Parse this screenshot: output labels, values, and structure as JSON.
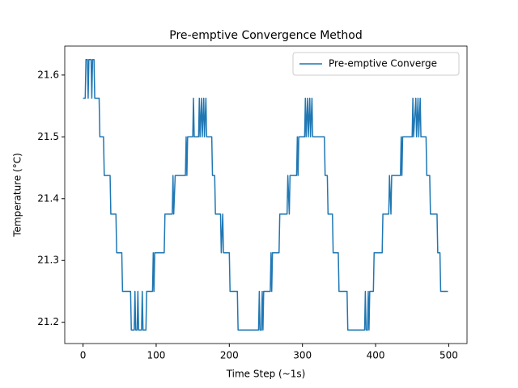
{
  "chart_data": {
    "type": "line",
    "title": "Pre-emptive Convergence Method",
    "xlabel": "Time Step (~1s)",
    "ylabel": "Temperature (°C)",
    "x": [
      0,
      3,
      4,
      6,
      7,
      8,
      11,
      12,
      13,
      15,
      16,
      22,
      23,
      28,
      29,
      37,
      38,
      45,
      46,
      53,
      54,
      65,
      66,
      70,
      71,
      72,
      74,
      75,
      76,
      80,
      81,
      82,
      86,
      87,
      95,
      96,
      97,
      98,
      111,
      112,
      122,
      123,
      124,
      126,
      140,
      141,
      142,
      143,
      150,
      151,
      152,
      158,
      159,
      160,
      162,
      163,
      165,
      166,
      168,
      169,
      176,
      177,
      180,
      181,
      188,
      189,
      191,
      192,
      200,
      201,
      211,
      212,
      240,
      241,
      242,
      244,
      245,
      246,
      247,
      256,
      257,
      258,
      259,
      268,
      269,
      279,
      280,
      282,
      283,
      292,
      293,
      294,
      295,
      303,
      304,
      305,
      307,
      308,
      310,
      311,
      313,
      314,
      330,
      331,
      334,
      335,
      341,
      342,
      349,
      350,
      361,
      362,
      385,
      386,
      387,
      389,
      390,
      391,
      392,
      397,
      398,
      409,
      410,
      418,
      419,
      421,
      422,
      434,
      435,
      436,
      437,
      450,
      451,
      452,
      455,
      456,
      458,
      459,
      461,
      462,
      469,
      470,
      474,
      475,
      484,
      485,
      488,
      489,
      499
    ],
    "series": [
      {
        "name": "Pre-emptive Converge",
        "color": "#1f77b4",
        "values": [
          21.5625,
          21.5625,
          21.625,
          21.625,
          21.5625,
          21.625,
          21.625,
          21.5625,
          21.625,
          21.625,
          21.5625,
          21.5625,
          21.5,
          21.5,
          21.4375,
          21.4375,
          21.375,
          21.375,
          21.3125,
          21.3125,
          21.25,
          21.25,
          21.1875,
          21.1875,
          21.25,
          21.1875,
          21.1875,
          21.25,
          21.1875,
          21.1875,
          21.25,
          21.1875,
          21.1875,
          21.25,
          21.25,
          21.3125,
          21.25,
          21.3125,
          21.3125,
          21.375,
          21.375,
          21.4375,
          21.375,
          21.4375,
          21.4375,
          21.5,
          21.4375,
          21.5,
          21.5,
          21.5625,
          21.5,
          21.5,
          21.5625,
          21.5,
          21.5625,
          21.5,
          21.5625,
          21.5,
          21.5625,
          21.5,
          21.5,
          21.4375,
          21.4375,
          21.375,
          21.375,
          21.3125,
          21.375,
          21.3125,
          21.3125,
          21.25,
          21.25,
          21.1875,
          21.1875,
          21.25,
          21.1875,
          21.1875,
          21.25,
          21.1875,
          21.25,
          21.25,
          21.3125,
          21.25,
          21.3125,
          21.3125,
          21.375,
          21.375,
          21.4375,
          21.375,
          21.4375,
          21.4375,
          21.5,
          21.4375,
          21.5,
          21.5,
          21.5625,
          21.5,
          21.5625,
          21.5,
          21.5625,
          21.5,
          21.5625,
          21.5,
          21.5,
          21.4375,
          21.4375,
          21.375,
          21.375,
          21.3125,
          21.3125,
          21.25,
          21.25,
          21.1875,
          21.1875,
          21.25,
          21.1875,
          21.1875,
          21.25,
          21.1875,
          21.25,
          21.25,
          21.3125,
          21.3125,
          21.375,
          21.375,
          21.4375,
          21.375,
          21.4375,
          21.4375,
          21.5,
          21.4375,
          21.5,
          21.5,
          21.5625,
          21.5,
          21.5625,
          21.5,
          21.5625,
          21.5,
          21.5625,
          21.5,
          21.5,
          21.4375,
          21.4375,
          21.375,
          21.375,
          21.3125,
          21.3125,
          21.25,
          21.25
        ]
      }
    ],
    "xlim": [
      -25,
      525
    ],
    "ylim": [
      21.165625,
      21.646875
    ],
    "xticks": [
      0,
      100,
      200,
      300,
      400,
      500
    ],
    "yticks": [
      21.2,
      21.3,
      21.4,
      21.5,
      21.6
    ],
    "legend": "upper right"
  }
}
